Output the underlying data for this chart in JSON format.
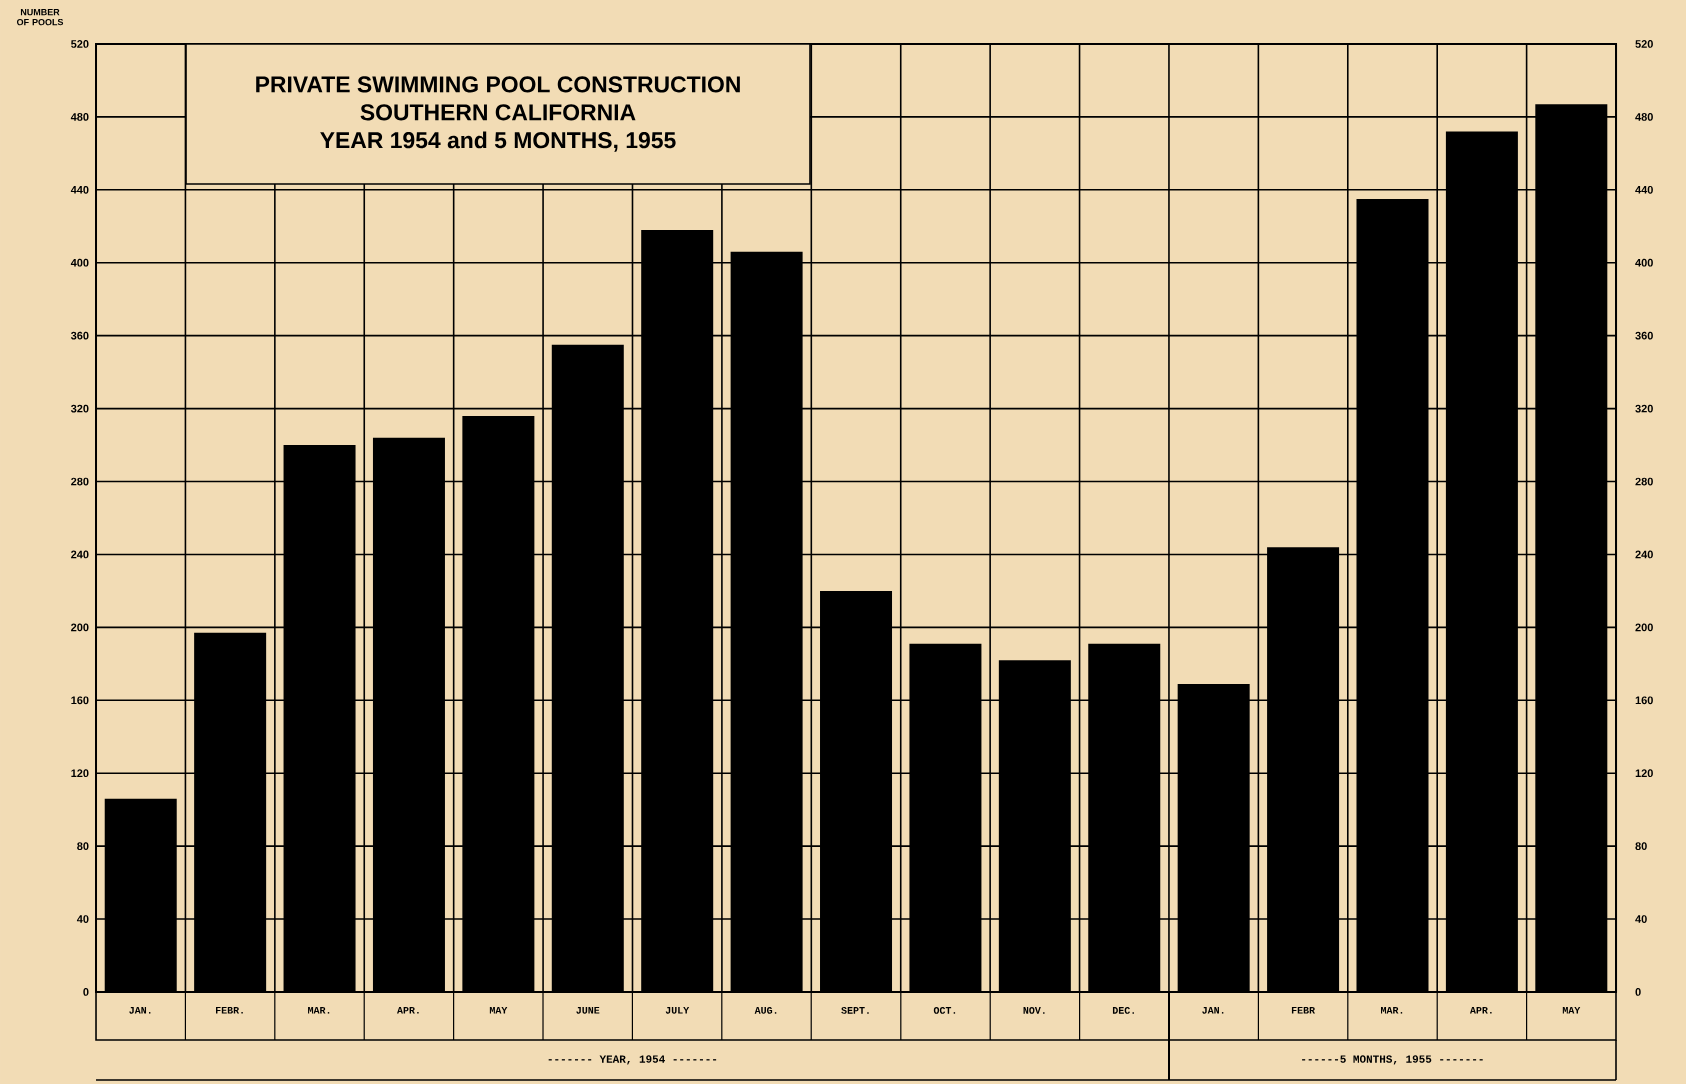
{
  "chart_data": {
    "type": "bar",
    "title": "PRIVATE SWIMMING POOL CONSTRUCTION",
    "subtitle": "SOUTHERN CALIFORNIA",
    "ylabel": "NUMBER OF POOLS",
    "annotations": [
      "YEAR 1954 and 5 MONTHS, 1955",
      "------- YEAR, 1954 -------",
      "------5 MONTHS, 1955 -------"
    ],
    "categories": [
      "JAN.",
      "FEBR.",
      "MAR.",
      "APR.",
      "MAY",
      "JUNE",
      "JULY",
      "AUG.",
      "SEPT.",
      "OCT.",
      "NOV.",
      "DEC.",
      "JAN.",
      "FEBR",
      "MAR.",
      "APR.",
      "MAY"
    ],
    "values": [
      106,
      197,
      300,
      304,
      316,
      355,
      418,
      406,
      220,
      191,
      182,
      191,
      169,
      244,
      435,
      472,
      487
    ],
    "color": "#000000",
    "ylim": [
      0,
      520
    ],
    "yticks": [
      0,
      40,
      80,
      120,
      160,
      200,
      240,
      280,
      320,
      360,
      400,
      440,
      480,
      520
    ],
    "y2lim": [
      0,
      520
    ],
    "y2ticks": [
      0,
      40,
      80,
      120,
      160,
      200,
      240,
      280,
      320,
      360,
      400,
      440,
      480,
      520
    ],
    "grid": true
  }
}
